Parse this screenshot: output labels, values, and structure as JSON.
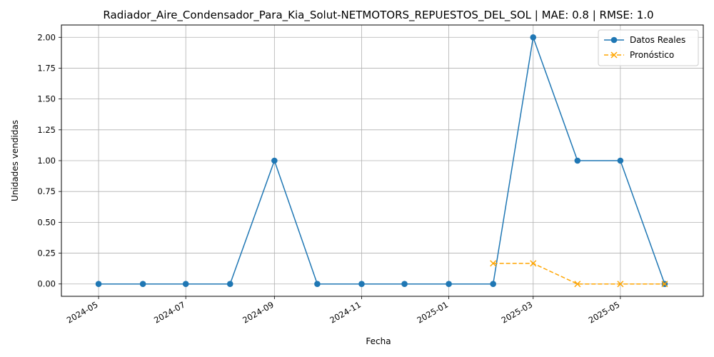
{
  "chart_data": {
    "type": "line",
    "title": "Radiador_Aire_Condensador_Para_Kia_Solut-NETMOTORS_REPUESTOS_DEL_SOL | MAE: 0.8 | RMSE: 1.0",
    "xlabel": "Fecha",
    "ylabel": "Unidades vendidas",
    "ylim": [
      -0.1,
      2.1
    ],
    "grid": true,
    "legend_position": "top-right",
    "x_tick_labels": [
      "2024-05",
      "2024-07",
      "2024-09",
      "2024-11",
      "2025-01",
      "2025-03",
      "2025-05"
    ],
    "y_tick_labels": [
      "0.00",
      "0.25",
      "0.50",
      "0.75",
      "1.00",
      "1.25",
      "1.50",
      "1.75",
      "2.00"
    ],
    "series": [
      {
        "name": "Datos Reales",
        "color": "#1f77b4",
        "marker": "circle",
        "line_style": "solid",
        "x": [
          "2024-05-01",
          "2024-06-01",
          "2024-07-01",
          "2024-08-01",
          "2024-09-01",
          "2024-10-01",
          "2024-11-01",
          "2024-12-01",
          "2025-01-01",
          "2025-02-01",
          "2025-03-01",
          "2025-04-01",
          "2025-05-01",
          "2025-06-01"
        ],
        "values": [
          0,
          0,
          0,
          0,
          1,
          0,
          0,
          0,
          0,
          0,
          2,
          1,
          1,
          0
        ]
      },
      {
        "name": "Pronóstico",
        "color": "#ffa500",
        "marker": "x",
        "line_style": "dashed",
        "x": [
          "2025-02-01",
          "2025-03-01",
          "2025-04-01",
          "2025-05-01",
          "2025-06-01"
        ],
        "values": [
          0.167,
          0.167,
          0,
          0,
          0
        ]
      }
    ]
  }
}
